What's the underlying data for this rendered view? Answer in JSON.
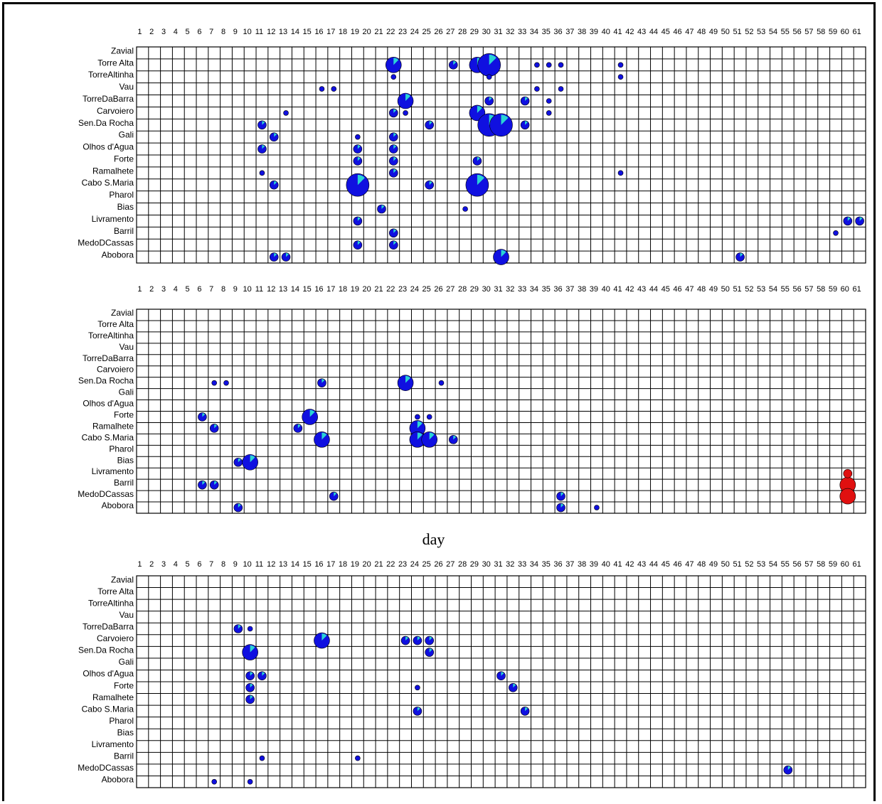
{
  "chart_data": [
    {
      "type": "heatmap",
      "title": "",
      "xlabel": "",
      "ylabel": "",
      "days": [
        1,
        2,
        3,
        4,
        5,
        6,
        7,
        8,
        9,
        10,
        11,
        12,
        13,
        14,
        15,
        16,
        17,
        18,
        19,
        20,
        21,
        22,
        23,
        24,
        25,
        26,
        27,
        28,
        29,
        30,
        31,
        32,
        33,
        34,
        35,
        36,
        37,
        38,
        39,
        40,
        41,
        42,
        43,
        44,
        45,
        46,
        47,
        48,
        49,
        50,
        51,
        52,
        53,
        54,
        55,
        56,
        57,
        58,
        59,
        60,
        61
      ],
      "rows": [
        "Zavial",
        "Torre Alta",
        "TorreAltinha",
        "Vau",
        "TorreDaBarra",
        "Carvoiero",
        "Sen.Da Rocha",
        "Gali",
        "Olhos d'Agua",
        "Forte",
        "Ramalhete",
        "Cabo S.Maria",
        "Pharol",
        "Bias",
        "Livramento",
        "Barril",
        "MedoDCassas",
        "Abobora"
      ],
      "points": [
        {
          "row": "Torre Alta",
          "day": 22,
          "size": 3
        },
        {
          "row": "Torre Alta",
          "day": 29,
          "size": 3
        },
        {
          "row": "Torre Alta",
          "day": 30,
          "size": 4
        },
        {
          "row": "Torre Alta",
          "day": 27,
          "size": 2
        },
        {
          "row": "Torre Alta",
          "day": 34,
          "size": 1
        },
        {
          "row": "Torre Alta",
          "day": 35,
          "size": 1
        },
        {
          "row": "Torre Alta",
          "day": 36,
          "size": 1
        },
        {
          "row": "Torre Alta",
          "day": 41,
          "size": 1
        },
        {
          "row": "TorreAltinha",
          "day": 22,
          "size": 1
        },
        {
          "row": "TorreAltinha",
          "day": 30,
          "size": 1
        },
        {
          "row": "TorreAltinha",
          "day": 41,
          "size": 1
        },
        {
          "row": "Vau",
          "day": 16,
          "size": 1
        },
        {
          "row": "Vau",
          "day": 17,
          "size": 1
        },
        {
          "row": "Vau",
          "day": 34,
          "size": 1
        },
        {
          "row": "Vau",
          "day": 36,
          "size": 1
        },
        {
          "row": "TorreDaBarra",
          "day": 23,
          "size": 3
        },
        {
          "row": "TorreDaBarra",
          "day": 30,
          "size": 2
        },
        {
          "row": "TorreDaBarra",
          "day": 33,
          "size": 2
        },
        {
          "row": "TorreDaBarra",
          "day": 35,
          "size": 1
        },
        {
          "row": "Carvoiero",
          "day": 22,
          "size": 2
        },
        {
          "row": "Carvoiero",
          "day": 23,
          "size": 1
        },
        {
          "row": "Carvoiero",
          "day": 29,
          "size": 3
        },
        {
          "row": "Carvoiero",
          "day": 35,
          "size": 1
        },
        {
          "row": "Carvoiero",
          "day": 13,
          "size": 1
        },
        {
          "row": "Sen.Da Rocha",
          "day": 11,
          "size": 2
        },
        {
          "row": "Sen.Da Rocha",
          "day": 25,
          "size": 2
        },
        {
          "row": "Sen.Da Rocha",
          "day": 30,
          "size": 4
        },
        {
          "row": "Sen.Da Rocha",
          "day": 31,
          "size": 4
        },
        {
          "row": "Sen.Da Rocha",
          "day": 33,
          "size": 2
        },
        {
          "row": "Gali",
          "day": 12,
          "size": 2
        },
        {
          "row": "Gali",
          "day": 19,
          "size": 1
        },
        {
          "row": "Gali",
          "day": 22,
          "size": 2
        },
        {
          "row": "Olhos d'Agua",
          "day": 11,
          "size": 2
        },
        {
          "row": "Olhos d'Agua",
          "day": 19,
          "size": 2
        },
        {
          "row": "Olhos d'Agua",
          "day": 22,
          "size": 2
        },
        {
          "row": "Forte",
          "day": 19,
          "size": 2
        },
        {
          "row": "Forte",
          "day": 22,
          "size": 2
        },
        {
          "row": "Forte",
          "day": 29,
          "size": 2
        },
        {
          "row": "Ramalhete",
          "day": 22,
          "size": 2
        },
        {
          "row": "Ramalhete",
          "day": 11,
          "size": 1
        },
        {
          "row": "Ramalhete",
          "day": 41,
          "size": 1
        },
        {
          "row": "Cabo S.Maria",
          "day": 19,
          "size": 4
        },
        {
          "row": "Cabo S.Maria",
          "day": 29,
          "size": 4
        },
        {
          "row": "Cabo S.Maria",
          "day": 25,
          "size": 2
        },
        {
          "row": "Cabo S.Maria",
          "day": 12,
          "size": 2
        },
        {
          "row": "Bias",
          "day": 21,
          "size": 2
        },
        {
          "row": "Bias",
          "day": 28,
          "size": 1
        },
        {
          "row": "Livramento",
          "day": 19,
          "size": 2
        },
        {
          "row": "Livramento",
          "day": 60,
          "size": 2
        },
        {
          "row": "Livramento",
          "day": 61,
          "size": 2
        },
        {
          "row": "Barril",
          "day": 22,
          "size": 2
        },
        {
          "row": "Barril",
          "day": 59,
          "size": 1
        },
        {
          "row": "MedoDCassas",
          "day": 19,
          "size": 2
        },
        {
          "row": "MedoDCassas",
          "day": 22,
          "size": 2
        },
        {
          "row": "Abobora",
          "day": 31,
          "size": 3
        },
        {
          "row": "Abobora",
          "day": 12,
          "size": 2
        },
        {
          "row": "Abobora",
          "day": 13,
          "size": 2
        },
        {
          "row": "Abobora",
          "day": 51,
          "size": 2
        }
      ]
    },
    {
      "type": "heatmap",
      "title": "",
      "xlabel": "day",
      "ylabel": "",
      "days": [
        1,
        2,
        3,
        4,
        5,
        6,
        7,
        8,
        9,
        10,
        11,
        12,
        13,
        14,
        15,
        16,
        17,
        18,
        19,
        20,
        21,
        22,
        23,
        24,
        25,
        26,
        27,
        28,
        29,
        30,
        31,
        32,
        33,
        34,
        35,
        36,
        37,
        38,
        39,
        40,
        41,
        42,
        43,
        44,
        45,
        46,
        47,
        48,
        49,
        50,
        51,
        52,
        53,
        54,
        55,
        56,
        57,
        58,
        59,
        60,
        61
      ],
      "rows": [
        "Zavial",
        "Torre Alta",
        "TorreAltinha",
        "Vau",
        "TorreDaBarra",
        "Carvoiero",
        "Sen.Da Rocha",
        "Gali",
        "Olhos d'Agua",
        "Forte",
        "Ramalhete",
        "Cabo S.Maria",
        "Pharol",
        "Bias",
        "Livramento",
        "Barril",
        "MedoDCassas",
        "Abobora"
      ],
      "points": [
        {
          "row": "Sen.Da Rocha",
          "day": 7,
          "size": 1
        },
        {
          "row": "Sen.Da Rocha",
          "day": 8,
          "size": 1
        },
        {
          "row": "Sen.Da Rocha",
          "day": 16,
          "size": 2
        },
        {
          "row": "Sen.Da Rocha",
          "day": 23,
          "size": 3
        },
        {
          "row": "Sen.Da Rocha",
          "day": 26,
          "size": 1
        },
        {
          "row": "Forte",
          "day": 6,
          "size": 2
        },
        {
          "row": "Forte",
          "day": 15,
          "size": 3
        },
        {
          "row": "Forte",
          "day": 24,
          "size": 1
        },
        {
          "row": "Forte",
          "day": 25,
          "size": 1
        },
        {
          "row": "Ramalhete",
          "day": 7,
          "size": 2
        },
        {
          "row": "Ramalhete",
          "day": 14,
          "size": 2
        },
        {
          "row": "Ramalhete",
          "day": 24,
          "size": 3
        },
        {
          "row": "Cabo S.Maria",
          "day": 16,
          "size": 3
        },
        {
          "row": "Cabo S.Maria",
          "day": 24,
          "size": 3
        },
        {
          "row": "Cabo S.Maria",
          "day": 25,
          "size": 3
        },
        {
          "row": "Cabo S.Maria",
          "day": 27,
          "size": 2
        },
        {
          "row": "Bias",
          "day": 9,
          "size": 2
        },
        {
          "row": "Bias",
          "day": 10,
          "size": 3
        },
        {
          "row": "Barril",
          "day": 6,
          "size": 2
        },
        {
          "row": "Barril",
          "day": 7,
          "size": 2
        },
        {
          "row": "Barril",
          "day": 60,
          "size": 3
        },
        {
          "row": "MedoDCassas",
          "day": 17,
          "size": 2
        },
        {
          "row": "MedoDCassas",
          "day": 36,
          "size": 2
        },
        {
          "row": "MedoDCassas",
          "day": 60,
          "size": 3
        },
        {
          "row": "Livramento",
          "day": 60,
          "size": 2
        },
        {
          "row": "Abobora",
          "day": 9,
          "size": 2
        },
        {
          "row": "Abobora",
          "day": 36,
          "size": 2
        },
        {
          "row": "Abobora",
          "day": 39,
          "size": 1
        }
      ]
    },
    {
      "type": "heatmap",
      "title": "",
      "xlabel": "",
      "ylabel": "",
      "days": [
        1,
        2,
        3,
        4,
        5,
        6,
        7,
        8,
        9,
        10,
        11,
        12,
        13,
        14,
        15,
        16,
        17,
        18,
        19,
        20,
        21,
        22,
        23,
        24,
        25,
        26,
        27,
        28,
        29,
        30,
        31,
        32,
        33,
        34,
        35,
        36,
        37,
        38,
        39,
        40,
        41,
        42,
        43,
        44,
        45,
        46,
        47,
        48,
        49,
        50,
        51,
        52,
        53,
        54,
        55,
        56,
        57,
        58,
        59,
        60,
        61
      ],
      "rows": [
        "Zavial",
        "Torre Alta",
        "TorreAltinha",
        "Vau",
        "TorreDaBarra",
        "Carvoiero",
        "Sen.Da Rocha",
        "Gali",
        "Olhos d'Agua",
        "Forte",
        "Ramalhete",
        "Cabo S.Maria",
        "Pharol",
        "Bias",
        "Livramento",
        "Barril",
        "MedoDCassas",
        "Abobora"
      ],
      "points": [
        {
          "row": "TorreDaBarra",
          "day": 9,
          "size": 2
        },
        {
          "row": "TorreDaBarra",
          "day": 10,
          "size": 1
        },
        {
          "row": "Carvoiero",
          "day": 16,
          "size": 3
        },
        {
          "row": "Carvoiero",
          "day": 23,
          "size": 2
        },
        {
          "row": "Carvoiero",
          "day": 24,
          "size": 2
        },
        {
          "row": "Carvoiero",
          "day": 25,
          "size": 2
        },
        {
          "row": "Sen.Da Rocha",
          "day": 10,
          "size": 3
        },
        {
          "row": "Sen.Da Rocha",
          "day": 25,
          "size": 2
        },
        {
          "row": "Olhos d'Agua",
          "day": 10,
          "size": 2
        },
        {
          "row": "Olhos d'Agua",
          "day": 11,
          "size": 2
        },
        {
          "row": "Olhos d'Agua",
          "day": 31,
          "size": 2
        },
        {
          "row": "Forte",
          "day": 10,
          "size": 2
        },
        {
          "row": "Forte",
          "day": 24,
          "size": 1
        },
        {
          "row": "Forte",
          "day": 32,
          "size": 2
        },
        {
          "row": "Ramalhete",
          "day": 10,
          "size": 2
        },
        {
          "row": "Cabo S.Maria",
          "day": 24,
          "size": 2
        },
        {
          "row": "Cabo S.Maria",
          "day": 33,
          "size": 2
        },
        {
          "row": "Barril",
          "day": 11,
          "size": 1
        },
        {
          "row": "Barril",
          "day": 19,
          "size": 1
        },
        {
          "row": "MedoDCassas",
          "day": 55,
          "size": 2
        },
        {
          "row": "Abobora",
          "day": 7,
          "size": 1
        },
        {
          "row": "Abobora",
          "day": 10,
          "size": 1
        }
      ]
    }
  ],
  "colors": {
    "main": "#1010e0",
    "light": "#2ad4d4",
    "red": "#e01010",
    "yellow": "#f0e040"
  },
  "xlabel_text": "day"
}
